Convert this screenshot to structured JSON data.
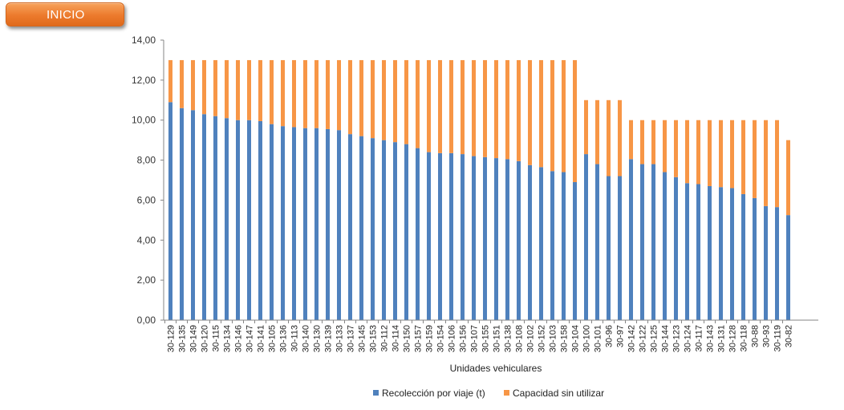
{
  "buttons": {
    "inicio_label": "INICIO"
  },
  "colors": {
    "recoleccion": "#4f81bd",
    "capacidad": "#f79646",
    "axis": "#868686"
  },
  "chart_data": {
    "type": "bar",
    "stacked": true,
    "title": "",
    "xlabel": "Unidades vehiculares",
    "ylabel": "",
    "ylim": [
      0,
      14
    ],
    "ytick_step": 2,
    "yticks": [
      "0,00",
      "2,00",
      "4,00",
      "6,00",
      "8,00",
      "10,00",
      "12,00",
      "14,00"
    ],
    "grid": false,
    "legend_position": "bottom",
    "categories": [
      "30-129",
      "30-135",
      "30-149",
      "30-120",
      "30-115",
      "30-134",
      "30-146",
      "30-147",
      "30-141",
      "30-105",
      "30-136",
      "30-113",
      "30-140",
      "30-130",
      "30-139",
      "30-133",
      "30-137",
      "30-145",
      "30-153",
      "30-112",
      "30-114",
      "30-150",
      "30-157",
      "30-159",
      "30-154",
      "30-106",
      "30-156",
      "30-107",
      "30-155",
      "30-151",
      "30-138",
      "30-108",
      "30-102",
      "30-152",
      "30-103",
      "30-158",
      "30-104",
      "30-100",
      "30-101",
      "30-96",
      "30-97",
      "30-142",
      "30-122",
      "30-125",
      "30-144",
      "30-123",
      "30-124",
      "30-117",
      "30-143",
      "30-131",
      "30-128",
      "30-118",
      "30-88",
      "30-93",
      "30-119",
      "30-82"
    ],
    "series": [
      {
        "name": "Recolección por viaje (t)",
        "color": "#4f81bd",
        "values": [
          10.9,
          10.6,
          10.5,
          10.3,
          10.2,
          10.1,
          10.0,
          10.0,
          9.95,
          9.8,
          9.7,
          9.65,
          9.6,
          9.6,
          9.55,
          9.5,
          9.3,
          9.2,
          9.1,
          9.0,
          8.9,
          8.8,
          8.6,
          8.4,
          8.35,
          8.35,
          8.3,
          8.2,
          8.15,
          8.1,
          8.05,
          7.95,
          7.75,
          7.65,
          7.45,
          7.4,
          6.9,
          8.3,
          7.8,
          7.2,
          7.2,
          8.05,
          7.8,
          7.8,
          7.4,
          7.15,
          6.85,
          6.8,
          6.7,
          6.65,
          6.6,
          6.3,
          6.1,
          5.7,
          5.65,
          5.25
        ]
      },
      {
        "name": "Capacidad sin utilizar",
        "color": "#f79646",
        "values": [
          2.1,
          2.4,
          2.5,
          2.7,
          2.8,
          2.9,
          3.0,
          3.0,
          3.05,
          3.2,
          3.3,
          3.35,
          3.4,
          3.4,
          3.45,
          3.5,
          3.7,
          3.8,
          3.9,
          4.0,
          4.1,
          4.2,
          4.4,
          4.6,
          4.65,
          4.65,
          4.7,
          4.8,
          4.85,
          4.9,
          4.95,
          5.05,
          5.25,
          5.35,
          5.55,
          5.6,
          6.1,
          2.7,
          3.2,
          3.8,
          3.8,
          1.95,
          2.2,
          2.2,
          2.6,
          2.85,
          3.15,
          3.2,
          3.3,
          3.35,
          3.4,
          3.7,
          3.9,
          4.3,
          4.35,
          3.75
        ]
      }
    ]
  }
}
